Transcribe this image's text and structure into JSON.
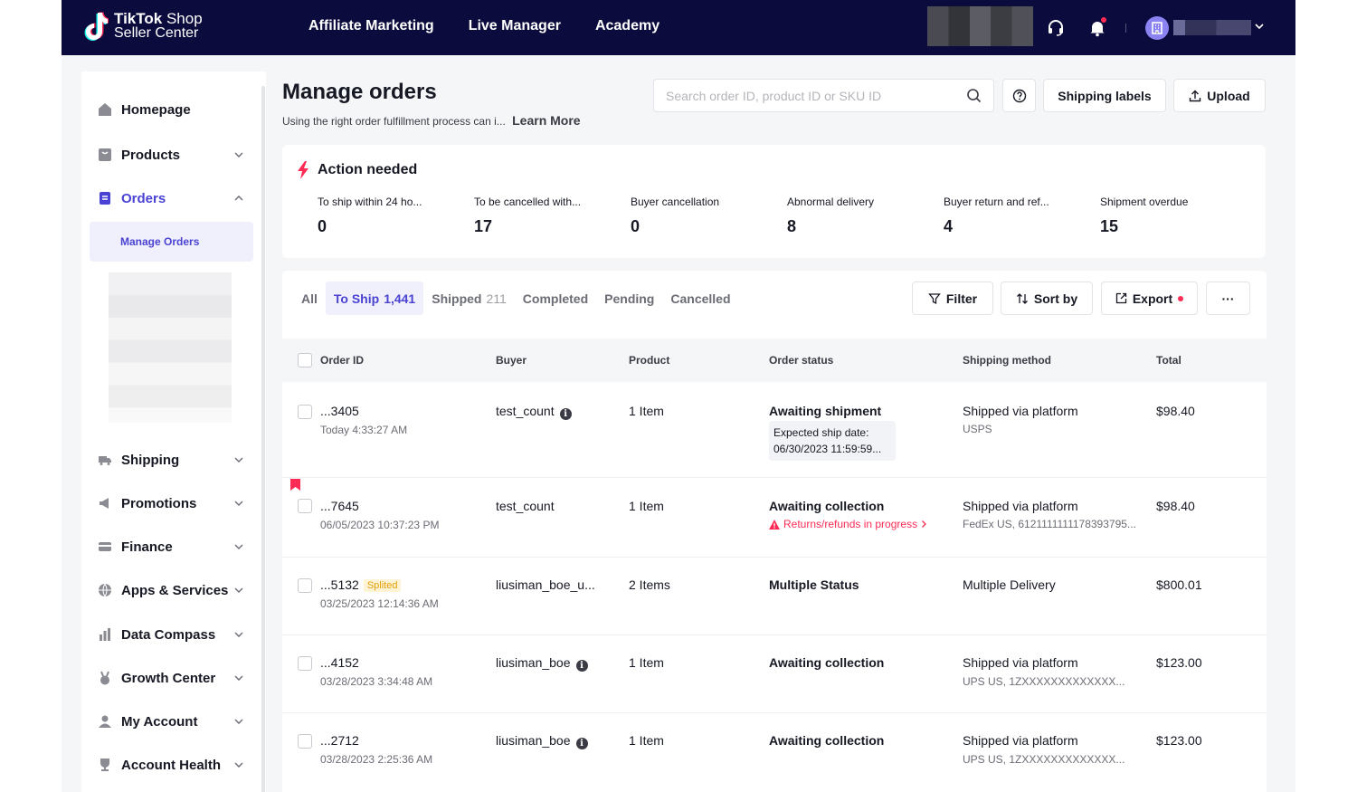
{
  "header": {
    "logo_brand": "TikTok",
    "logo_shop": "Shop",
    "logo_sub": "Seller Center",
    "nav": [
      "Affiliate Marketing",
      "Live Manager",
      "Academy"
    ]
  },
  "sidebar": {
    "items": [
      {
        "label": "Homepage",
        "icon": "home-icon"
      },
      {
        "label": "Products",
        "icon": "product-icon"
      },
      {
        "label": "Orders",
        "icon": "orders-icon"
      },
      {
        "label": "Shipping",
        "icon": "truck-icon"
      },
      {
        "label": "Promotions",
        "icon": "megaphone-icon"
      },
      {
        "label": "Finance",
        "icon": "card-icon"
      },
      {
        "label": "Apps & Services",
        "icon": "globe-icon"
      },
      {
        "label": "Data Compass",
        "icon": "chart-icon"
      },
      {
        "label": "Growth Center",
        "icon": "medal-icon"
      },
      {
        "label": "My Account",
        "icon": "user-icon"
      },
      {
        "label": "Account Health",
        "icon": "trophy-icon"
      }
    ],
    "sub_active": "Manage Orders"
  },
  "page": {
    "title": "Manage orders",
    "subtitle": "Using the right order fulfillment process can i...",
    "learn_more": "Learn More",
    "search_placeholder": "Search order ID, product ID or SKU ID",
    "shipping_labels": "Shipping labels",
    "upload": "Upload"
  },
  "action": {
    "title": "Action needed",
    "metrics": [
      {
        "label": "To ship within 24 ho...",
        "value": "0"
      },
      {
        "label": "To be cancelled with...",
        "value": "17"
      },
      {
        "label": "Buyer cancellation",
        "value": "0"
      },
      {
        "label": "Abnormal delivery",
        "value": "8"
      },
      {
        "label": "Buyer return and ref...",
        "value": "4"
      },
      {
        "label": "Shipment overdue",
        "value": "15"
      }
    ]
  },
  "orders": {
    "tabs": [
      {
        "label": "All",
        "count": ""
      },
      {
        "label": "To Ship",
        "count": "1,441"
      },
      {
        "label": "Shipped",
        "count": "211"
      },
      {
        "label": "Completed",
        "count": ""
      },
      {
        "label": "Pending",
        "count": ""
      },
      {
        "label": "Cancelled",
        "count": ""
      }
    ],
    "filter": "Filter",
    "sort": "Sort by",
    "export": "Export",
    "more": "···",
    "columns": [
      "Order ID",
      "Buyer",
      "Product",
      "Order status",
      "Shipping method",
      "Total"
    ],
    "rows": [
      {
        "id": "...3405",
        "date": "Today 4:33:27 AM",
        "buyer": "test_count",
        "buyer_info": "i",
        "product": "1 Item",
        "status": "Awaiting shipment",
        "ship_label": "Expected ship date:",
        "ship_date": "06/30/2023 11:59:59...",
        "method": "Shipped via platform",
        "carrier": "USPS",
        "total": "$98.40"
      },
      {
        "id": "...7645",
        "date": "06/05/2023 10:37:23 PM",
        "buyer": "test_count",
        "product": "1 Item",
        "status": "Awaiting collection",
        "warning": "Returns/refunds in progress",
        "method": "Shipped via platform",
        "carrier": "FedEx US, 6121111111178393795...",
        "total": "$98.40"
      },
      {
        "id": "...5132",
        "badge": "Splited",
        "date": "03/25/2023 12:14:36 AM",
        "buyer": "liusiman_boe_u...",
        "product": "2 Items",
        "status": "Multiple Status",
        "method": "Multiple Delivery",
        "total": "$800.01"
      },
      {
        "id": "...4152",
        "date": "03/28/2023 3:34:48 AM",
        "buyer": "liusiman_boe",
        "buyer_info": "i",
        "product": "1 Item",
        "status": "Awaiting collection",
        "method": "Shipped via platform",
        "carrier": "UPS US, 1ZXXXXXXXXXXXXX...",
        "total": "$123.00"
      },
      {
        "id": "...2712",
        "date": "03/28/2023 2:25:36 AM",
        "buyer": "liusiman_boe",
        "buyer_info": "i",
        "product": "1 Item",
        "status": "Awaiting collection",
        "method": "Shipped via platform",
        "carrier": "UPS US, 1ZXXXXXXXXXXXXX...",
        "total": "$123.00"
      }
    ]
  },
  "colors": {
    "topbar": "#0b0b3e",
    "accent": "#4a42d3",
    "danger": "#fe2c55"
  }
}
